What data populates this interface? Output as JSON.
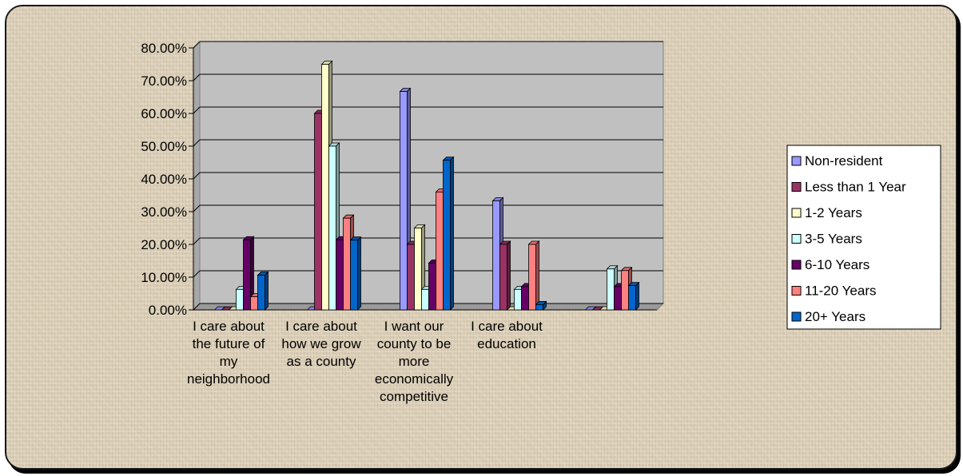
{
  "chart_data": {
    "type": "bar",
    "y_tick_labels": [
      "0.00%",
      "10.00%",
      "20.00%",
      "30.00%",
      "40.00%",
      "50.00%",
      "60.00%",
      "70.00%",
      "80.00%"
    ],
    "ylim": [
      0,
      80
    ],
    "y_unit": "%",
    "grid": true,
    "legend_position": "right",
    "categories": [
      "I care about the future of my neighborhood",
      "I care about how we grow as a county",
      "I want our county to be more economically competitive",
      "I care about education",
      ""
    ],
    "category_lines": [
      [
        "I care about",
        "the future of",
        "my",
        "neighborhood"
      ],
      [
        "I care about",
        "how we grow",
        "as a county"
      ],
      [
        "I want our",
        "county to be",
        "more",
        "economically",
        "competitive"
      ],
      [
        "I care about",
        "education"
      ],
      []
    ],
    "series": [
      {
        "name": "Non-resident",
        "color": "#9999ff",
        "values": [
          0,
          0,
          66.7,
          33.3,
          0
        ]
      },
      {
        "name": "Less than 1 Year",
        "color": "#993366",
        "values": [
          0,
          60,
          20,
          20,
          0
        ]
      },
      {
        "name": "1-2 Years",
        "color": "#ffffcc",
        "values": [
          0,
          75,
          25,
          0,
          0
        ]
      },
      {
        "name": "3-5 Years",
        "color": "#ccffff",
        "values": [
          6.25,
          50,
          6.25,
          6.25,
          12.5
        ]
      },
      {
        "name": "6-10 Years",
        "color": "#660066",
        "values": [
          21.4,
          21.4,
          14.3,
          7.1,
          7.1
        ]
      },
      {
        "name": "11-20 Years",
        "color": "#ff8080",
        "values": [
          4,
          28,
          36,
          20,
          12
        ]
      },
      {
        "name": "20+ Years",
        "color": "#0066cc",
        "values": [
          10.6,
          21.3,
          45.7,
          1.6,
          7.4
        ]
      }
    ]
  }
}
